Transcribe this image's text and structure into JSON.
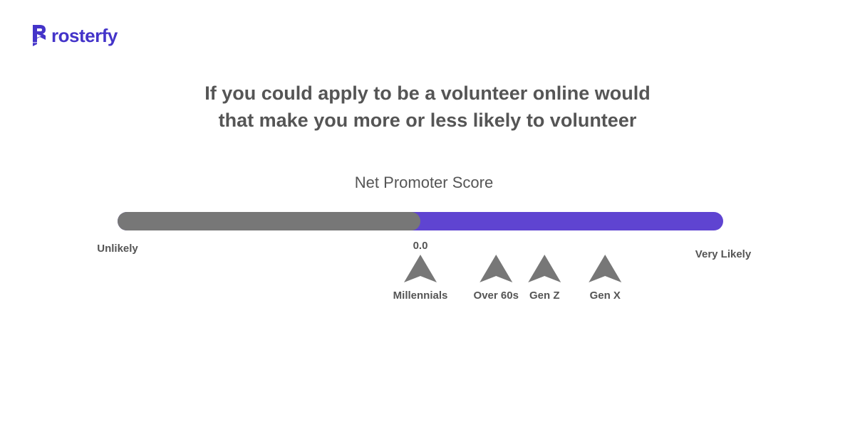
{
  "logo": {
    "text": "rosterfy"
  },
  "chart_data": {
    "type": "gauge",
    "title_lines": [
      "If you could apply to be a volunteer online would",
      "that make you more or less likely to volunteer"
    ],
    "subtitle": "Net Promoter Score",
    "min_label": "Unlikely",
    "max_label": "Very Likely",
    "scale_min": -100,
    "scale_max": 100,
    "score": 0.0,
    "score_label": "0.0",
    "markers": [
      {
        "name": "Millennials",
        "value": 0
      },
      {
        "name": "Over 60s",
        "value": 25
      },
      {
        "name": "Gen Z",
        "value": 41
      },
      {
        "name": "Gen X",
        "value": 61
      }
    ],
    "colors": {
      "negative": "#777777",
      "positive": "#5f44d1",
      "marker": "#777777",
      "logo": "#4434c9"
    }
  }
}
